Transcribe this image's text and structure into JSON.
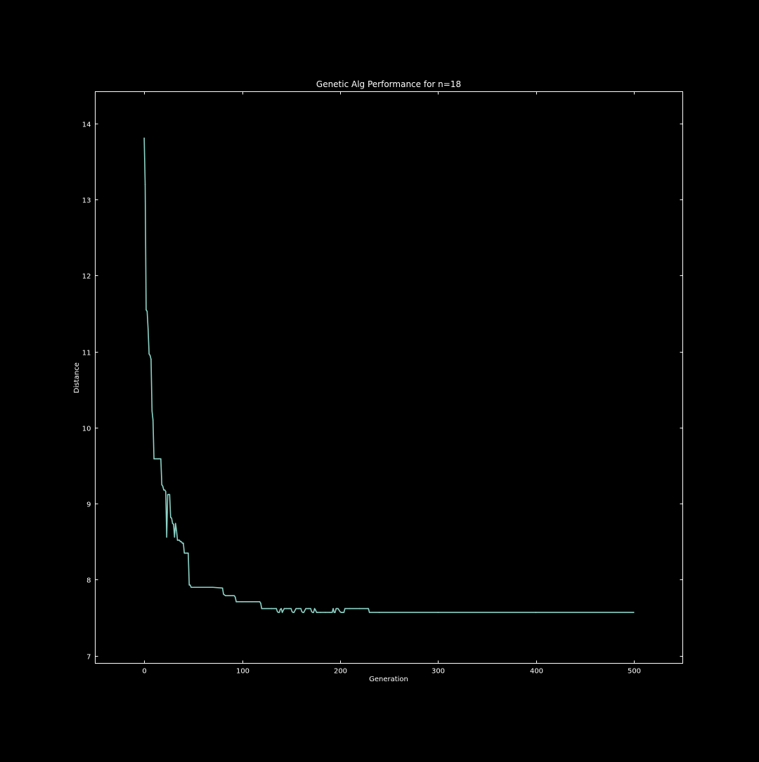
{
  "chart_data": {
    "type": "line",
    "title": "Genetic Alg Performance for n=18",
    "xlabel": "Generation",
    "ylabel": "Distance",
    "xlim": [
      -50,
      550
    ],
    "ylim": [
      6.9,
      14.42
    ],
    "xticks": [
      0,
      100,
      200,
      300,
      400,
      500
    ],
    "yticks": [
      7,
      8,
      9,
      10,
      11,
      12,
      13,
      14
    ],
    "grid": false,
    "legend": "none",
    "colors": {
      "background": "#000000",
      "axes": "#ffffff",
      "text": "#ffffff",
      "line": "#8dd3c7"
    },
    "series": [
      {
        "x": [
          0,
          1,
          2,
          3,
          4,
          5,
          6,
          7,
          8,
          9,
          10,
          11,
          12,
          13,
          14,
          15,
          16,
          17,
          18,
          19,
          20,
          21,
          22,
          23,
          24,
          25,
          26,
          27,
          28,
          29,
          30,
          31,
          32,
          33,
          34,
          35,
          36,
          37,
          38,
          39,
          40,
          41,
          42,
          43,
          44,
          45,
          46,
          47,
          48,
          49,
          50,
          60,
          70,
          80,
          81,
          82,
          83,
          90,
          92,
          93,
          94,
          100,
          110,
          118,
          119,
          120,
          130,
          135,
          136,
          137,
          138,
          139,
          140,
          141,
          143,
          145,
          148,
          150,
          151,
          152,
          153,
          155,
          158,
          160,
          161,
          162,
          163,
          165,
          168,
          170,
          171,
          172,
          173,
          174,
          175,
          176,
          177,
          180,
          185,
          190,
          192,
          193,
          194,
          195,
          196,
          197,
          198,
          200,
          201,
          202,
          203,
          204,
          205,
          210,
          220,
          228,
          229,
          230,
          240,
          300,
          400,
          500
        ],
        "y": [
          13.81,
          13.2,
          11.55,
          11.53,
          11.3,
          10.97,
          10.95,
          10.9,
          10.22,
          10.1,
          9.59,
          9.59,
          9.59,
          9.59,
          9.59,
          9.59,
          9.59,
          9.59,
          9.25,
          9.23,
          9.18,
          9.18,
          9.16,
          8.56,
          9.12,
          9.12,
          9.12,
          8.82,
          8.81,
          8.74,
          8.73,
          8.56,
          8.74,
          8.65,
          8.52,
          8.52,
          8.52,
          8.5,
          8.5,
          8.48,
          8.48,
          8.35,
          8.35,
          8.35,
          8.35,
          8.35,
          7.93,
          7.93,
          7.9,
          7.9,
          7.9,
          7.9,
          7.9,
          7.89,
          7.81,
          7.8,
          7.79,
          7.79,
          7.79,
          7.77,
          7.71,
          7.71,
          7.71,
          7.71,
          7.69,
          7.62,
          7.62,
          7.62,
          7.58,
          7.57,
          7.57,
          7.61,
          7.62,
          7.57,
          7.62,
          7.62,
          7.62,
          7.62,
          7.58,
          7.57,
          7.57,
          7.62,
          7.62,
          7.62,
          7.58,
          7.57,
          7.57,
          7.62,
          7.62,
          7.62,
          7.58,
          7.57,
          7.57,
          7.62,
          7.6,
          7.57,
          7.57,
          7.57,
          7.57,
          7.57,
          7.57,
          7.62,
          7.57,
          7.57,
          7.62,
          7.62,
          7.62,
          7.58,
          7.57,
          7.57,
          7.57,
          7.57,
          7.62,
          7.62,
          7.62,
          7.62,
          7.62,
          7.57,
          7.57,
          7.57,
          7.57,
          7.57
        ]
      }
    ]
  }
}
